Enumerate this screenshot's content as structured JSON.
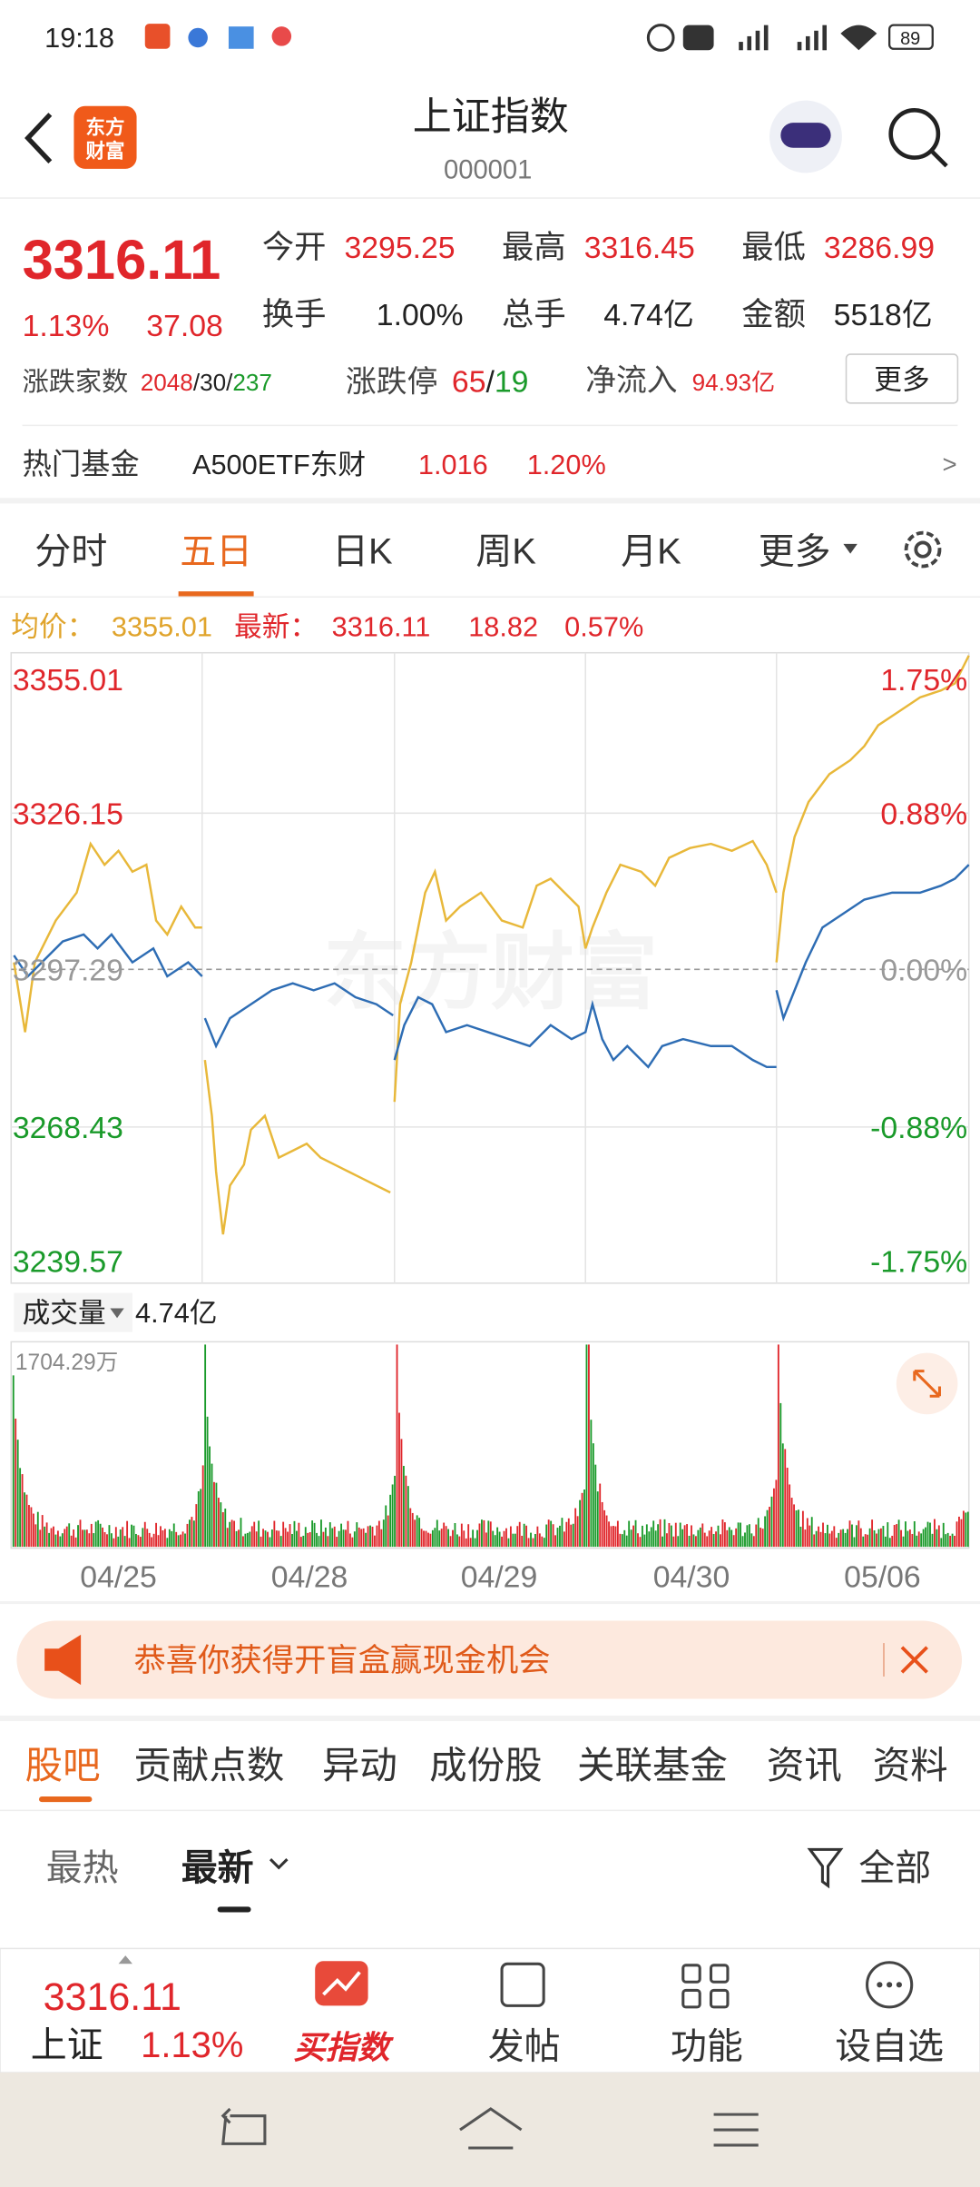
{
  "status_bar": {
    "time": "19:18",
    "battery": "89"
  },
  "header": {
    "logo": [
      "东方",
      "财富"
    ],
    "title": "上证指数",
    "code": "000001"
  },
  "quote": {
    "price": "3316.11",
    "change_pct": "1.13%",
    "change": "37.08",
    "stats": [
      {
        "label": "今开",
        "value": "3295.25"
      },
      {
        "label": "最高",
        "value": "3316.45"
      },
      {
        "label": "最低",
        "value": "3286.99"
      },
      {
        "label": "换手",
        "value": "1.00%"
      },
      {
        "label": "总手",
        "value": "4.74亿"
      },
      {
        "label": "金额",
        "value": "5518亿"
      }
    ],
    "breadth": {
      "label": "涨跌家数",
      "parts": [
        "2048",
        "/30/",
        "237"
      ]
    },
    "limit": {
      "label": "涨跌停",
      "parts": [
        "65",
        "/",
        "19"
      ]
    },
    "net_inflow": {
      "label": "净流入",
      "value": "94.93亿"
    },
    "more": "更多"
  },
  "hot_fund": {
    "label": "热门基金",
    "name": "A500ETF东财",
    "price": "1.016",
    "pct": "1.20%",
    "arrow": ">"
  },
  "chart_tabs": {
    "items": [
      "分时",
      "五日",
      "日K",
      "周K",
      "月K",
      "更多"
    ],
    "active": 1
  },
  "legend": {
    "avg_label": "均价：",
    "avg": "3355.01",
    "latest_label": "最新：",
    "latest": "3316.11",
    "change": "18.82",
    "pct": "0.57%"
  },
  "chart": {
    "watermark": "东方财富",
    "left_labels": [
      "3355.01",
      "3326.15",
      "3297.29",
      "3268.43",
      "3239.57"
    ],
    "right_labels": [
      "1.75%",
      "0.88%",
      "0.00%",
      "-0.88%",
      "-1.75%"
    ],
    "volume_label": "成交量",
    "volume": "4.74亿",
    "volume_max": "1704.29万",
    "dates": [
      "04/25",
      "04/28",
      "04/29",
      "04/30",
      "05/06"
    ]
  },
  "banner": "恭喜你获得开盲盒赢现金机会",
  "content_tabs": {
    "items": [
      "股吧",
      "贡献点数",
      "异动",
      "成份股",
      "关联基金",
      "资讯",
      "资料"
    ],
    "active": 0
  },
  "sort": {
    "items": [
      "最热",
      "最新"
    ],
    "active": 1,
    "filter": "全部"
  },
  "bottom": {
    "price": "3316.11",
    "name": "上证",
    "pct": "1.13%",
    "actions": [
      "买指数",
      "发帖",
      "功能",
      "设自选"
    ]
  }
}
